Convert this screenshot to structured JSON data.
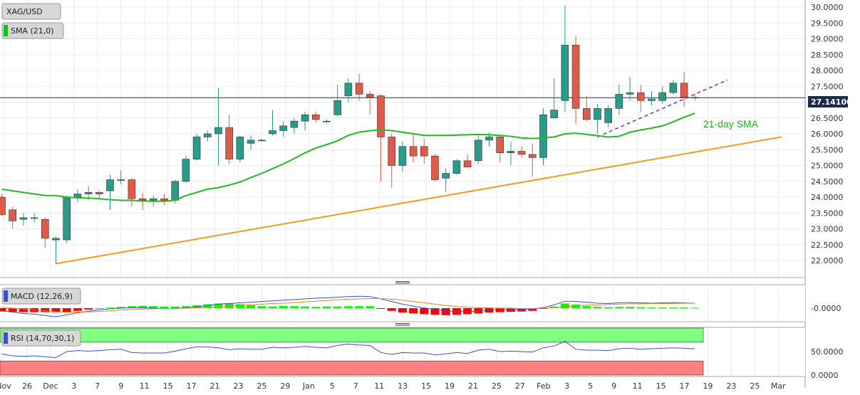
{
  "chart_data": [
    {
      "type": "candlestick",
      "panel": "price",
      "symbol": "XAG/USD",
      "indicator_label": "SMA (21,0)",
      "annotation": "21-day SMA",
      "last_price": "27.14100",
      "ylim": [
        21.75,
        30.2
      ],
      "y_ticks": [
        "22.0000",
        "22.5000",
        "23.0000",
        "23.5000",
        "24.0000",
        "24.5000",
        "25.0000",
        "25.5000",
        "26.0000",
        "26.5000",
        "27.0000",
        "27.5000",
        "28.0000",
        "28.5000",
        "29.0000",
        "29.5000",
        "30.0000"
      ],
      "x_ticks": [
        "Nov",
        "26",
        "Dec",
        "3",
        "7",
        "9",
        "11",
        "15",
        "17",
        "21",
        "23",
        "25",
        "29",
        "Jan",
        "5",
        "7",
        "11",
        "13",
        "15",
        "19",
        "21",
        "25",
        "27",
        "Feb",
        "3",
        "5",
        "9",
        "11",
        "15",
        "17",
        "19",
        "23",
        "25",
        "Mar"
      ],
      "candles": [
        {
          "o": 24.0,
          "h": 24.1,
          "l": 23.4,
          "c": 23.45
        },
        {
          "o": 23.6,
          "h": 23.7,
          "l": 23.0,
          "c": 23.25
        },
        {
          "o": 23.3,
          "h": 23.5,
          "l": 23.1,
          "c": 23.35
        },
        {
          "o": 23.35,
          "h": 23.5,
          "l": 23.2,
          "c": 23.35
        },
        {
          "o": 23.3,
          "h": 23.35,
          "l": 22.4,
          "c": 22.7
        },
        {
          "o": 22.65,
          "h": 22.75,
          "l": 21.9,
          "c": 22.7
        },
        {
          "o": 22.65,
          "h": 24.05,
          "l": 22.55,
          "c": 24.0
        },
        {
          "o": 24.0,
          "h": 24.25,
          "l": 23.85,
          "c": 24.1
        },
        {
          "o": 24.1,
          "h": 24.35,
          "l": 23.9,
          "c": 24.15
        },
        {
          "o": 24.15,
          "h": 24.2,
          "l": 23.95,
          "c": 24.1
        },
        {
          "o": 24.2,
          "h": 24.7,
          "l": 23.6,
          "c": 24.55
        },
        {
          "o": 24.55,
          "h": 24.85,
          "l": 24.4,
          "c": 24.55
        },
        {
          "o": 24.55,
          "h": 24.6,
          "l": 23.7,
          "c": 23.95
        },
        {
          "o": 23.95,
          "h": 24.15,
          "l": 23.6,
          "c": 23.9
        },
        {
          "o": 23.9,
          "h": 24.05,
          "l": 23.7,
          "c": 23.95
        },
        {
          "o": 23.95,
          "h": 24.1,
          "l": 23.75,
          "c": 23.9
        },
        {
          "o": 23.9,
          "h": 24.55,
          "l": 23.8,
          "c": 24.5
        },
        {
          "o": 24.5,
          "h": 25.3,
          "l": 24.45,
          "c": 25.2
        },
        {
          "o": 25.2,
          "h": 26.0,
          "l": 25.15,
          "c": 25.9
        },
        {
          "o": 25.9,
          "h": 26.1,
          "l": 25.75,
          "c": 26.0
        },
        {
          "o": 26.0,
          "h": 27.45,
          "l": 25.0,
          "c": 26.2
        },
        {
          "o": 26.2,
          "h": 26.6,
          "l": 25.05,
          "c": 25.2
        },
        {
          "o": 25.2,
          "h": 25.95,
          "l": 25.1,
          "c": 25.9
        },
        {
          "o": 25.7,
          "h": 25.95,
          "l": 25.5,
          "c": 25.8
        },
        {
          "o": 25.8,
          "h": 25.85,
          "l": 25.75,
          "c": 25.8
        },
        {
          "o": 26.0,
          "h": 26.75,
          "l": 25.95,
          "c": 26.1
        },
        {
          "o": 26.1,
          "h": 26.4,
          "l": 25.9,
          "c": 26.25
        },
        {
          "o": 26.2,
          "h": 26.5,
          "l": 26.0,
          "c": 26.4
        },
        {
          "o": 26.4,
          "h": 26.7,
          "l": 26.1,
          "c": 26.6
        },
        {
          "o": 26.6,
          "h": 26.7,
          "l": 26.35,
          "c": 26.45
        },
        {
          "o": 26.4,
          "h": 26.45,
          "l": 26.35,
          "c": 26.4
        },
        {
          "o": 26.6,
          "h": 27.55,
          "l": 26.55,
          "c": 27.05
        },
        {
          "o": 27.2,
          "h": 27.75,
          "l": 27.0,
          "c": 27.6
        },
        {
          "o": 27.6,
          "h": 27.9,
          "l": 27.05,
          "c": 27.25
        },
        {
          "o": 27.25,
          "h": 27.35,
          "l": 26.6,
          "c": 27.15
        },
        {
          "o": 27.2,
          "h": 27.25,
          "l": 24.5,
          "c": 25.9
        },
        {
          "o": 25.9,
          "h": 26.0,
          "l": 24.3,
          "c": 25.0
        },
        {
          "o": 25.0,
          "h": 25.75,
          "l": 24.8,
          "c": 25.6
        },
        {
          "o": 25.6,
          "h": 26.0,
          "l": 25.1,
          "c": 25.3
        },
        {
          "o": 25.6,
          "h": 25.85,
          "l": 25.05,
          "c": 25.3
        },
        {
          "o": 25.3,
          "h": 25.35,
          "l": 24.5,
          "c": 24.55
        },
        {
          "o": 24.6,
          "h": 24.9,
          "l": 24.15,
          "c": 24.75
        },
        {
          "o": 24.75,
          "h": 25.2,
          "l": 24.7,
          "c": 25.15
        },
        {
          "o": 25.15,
          "h": 25.35,
          "l": 24.95,
          "c": 24.95
        },
        {
          "o": 25.15,
          "h": 25.95,
          "l": 25.05,
          "c": 25.8
        },
        {
          "o": 25.8,
          "h": 26.05,
          "l": 25.6,
          "c": 25.9
        },
        {
          "o": 25.9,
          "h": 25.95,
          "l": 25.1,
          "c": 25.4
        },
        {
          "o": 25.4,
          "h": 25.75,
          "l": 25.0,
          "c": 25.45
        },
        {
          "o": 25.45,
          "h": 25.6,
          "l": 25.25,
          "c": 25.35
        },
        {
          "o": 25.35,
          "h": 25.7,
          "l": 24.65,
          "c": 25.25
        },
        {
          "o": 25.25,
          "h": 26.8,
          "l": 25.0,
          "c": 26.6
        },
        {
          "o": 26.5,
          "h": 27.75,
          "l": 26.55,
          "c": 26.75
        },
        {
          "o": 27.05,
          "h": 30.05,
          "l": 26.7,
          "c": 28.8
        },
        {
          "o": 28.8,
          "h": 29.1,
          "l": 26.3,
          "c": 26.8
        },
        {
          "o": 26.8,
          "h": 27.2,
          "l": 26.4,
          "c": 26.45
        },
        {
          "o": 26.45,
          "h": 26.95,
          "l": 26.0,
          "c": 26.8
        },
        {
          "o": 26.35,
          "h": 26.9,
          "l": 26.2,
          "c": 26.8
        },
        {
          "o": 26.8,
          "h": 27.55,
          "l": 26.6,
          "c": 27.25
        },
        {
          "o": 27.25,
          "h": 27.8,
          "l": 27.05,
          "c": 27.3
        },
        {
          "o": 27.3,
          "h": 27.55,
          "l": 26.7,
          "c": 27.05
        },
        {
          "o": 27.05,
          "h": 27.35,
          "l": 26.9,
          "c": 27.1
        },
        {
          "o": 27.05,
          "h": 27.5,
          "l": 26.95,
          "c": 27.3
        },
        {
          "o": 27.3,
          "h": 27.7,
          "l": 27.25,
          "c": 27.6
        },
        {
          "o": 27.6,
          "h": 27.95,
          "l": 26.85,
          "c": 27.15
        },
        {
          "o": 27.15,
          "h": 27.25,
          "l": 27.05,
          "c": 27.14
        }
      ],
      "sma21": [
        24.25,
        24.2,
        24.15,
        24.1,
        24.05,
        24.05,
        24.0,
        23.98,
        23.97,
        23.95,
        23.92,
        23.9,
        23.9,
        23.88,
        23.87,
        23.87,
        23.9,
        24.05,
        24.15,
        24.25,
        24.3,
        24.38,
        24.48,
        24.62,
        24.75,
        24.9,
        25.05,
        25.22,
        25.4,
        25.55,
        25.66,
        25.78,
        25.95,
        26.05,
        26.1,
        26.12,
        26.1,
        26.05,
        26.0,
        25.95,
        25.95,
        25.95,
        25.96,
        25.97,
        25.98,
        25.97,
        25.95,
        25.92,
        25.87,
        25.85,
        25.87,
        25.9,
        26.0,
        26.02,
        25.98,
        25.94,
        25.9,
        25.92,
        26.05,
        26.12,
        26.18,
        26.25,
        26.38,
        26.52,
        26.65
      ],
      "trendline_support": {
        "from": {
          "candle": 5,
          "y": 21.9
        },
        "to": {
          "candle": 72,
          "y": 25.9
        }
      },
      "trendline_resistance": {
        "from": {
          "candle": 55,
          "y": 25.9
        },
        "to": {
          "candle": 67,
          "y": 27.7
        }
      }
    },
    {
      "type": "histogram+line",
      "panel": "macd",
      "label": "MACD (12,26,9)",
      "ylim": [
        -0.3,
        0.67
      ],
      "y_ticks": [
        "-0.0000"
      ],
      "histogram": [
        -0.1,
        -0.11,
        -0.12,
        -0.12,
        -0.12,
        -0.12,
        -0.12,
        -0.08,
        -0.04,
        0.0,
        0.02,
        0.04,
        0.06,
        0.07,
        0.06,
        0.05,
        0.05,
        0.06,
        0.09,
        0.12,
        0.14,
        0.15,
        0.12,
        0.09,
        0.06,
        0.05,
        0.07,
        0.06,
        0.05,
        0.04,
        0.05,
        0.05,
        0.06,
        0.06,
        0.06,
        -0.02,
        -0.08,
        -0.13,
        -0.16,
        -0.18,
        -0.2,
        -0.21,
        -0.2,
        -0.18,
        -0.16,
        -0.13,
        -0.12,
        -0.11,
        -0.1,
        -0.08,
        -0.02,
        0.05,
        0.14,
        0.11,
        0.06,
        0.04,
        0.03,
        0.04,
        0.04,
        0.03,
        0.02,
        0.02,
        0.02,
        0.02,
        0.01
      ],
      "macd_line": [
        -0.08,
        -0.12,
        -0.16,
        -0.18,
        -0.22,
        -0.26,
        -0.2,
        -0.14,
        -0.09,
        -0.05,
        -0.02,
        0.0,
        0.01,
        0.01,
        0.0,
        -0.01,
        -0.01,
        0.01,
        0.04,
        0.08,
        0.12,
        0.14,
        0.16,
        0.18,
        0.2,
        0.22,
        0.24,
        0.26,
        0.28,
        0.3,
        0.31,
        0.33,
        0.35,
        0.36,
        0.35,
        0.28,
        0.2,
        0.12,
        0.06,
        0.01,
        -0.04,
        -0.08,
        -0.1,
        -0.1,
        -0.09,
        -0.07,
        -0.05,
        -0.04,
        -0.03,
        -0.02,
        0.02,
        0.1,
        0.21,
        0.2,
        0.18,
        0.15,
        0.14,
        0.16,
        0.17,
        0.16,
        0.15,
        0.16,
        0.17,
        0.16,
        0.15
      ],
      "signal_line": [
        0.02,
        0.0,
        -0.02,
        -0.05,
        -0.08,
        -0.11,
        -0.12,
        -0.12,
        -0.11,
        -0.1,
        -0.08,
        -0.06,
        -0.04,
        -0.03,
        -0.02,
        -0.01,
        -0.01,
        0.0,
        0.01,
        0.02,
        0.04,
        0.06,
        0.08,
        0.1,
        0.12,
        0.14,
        0.15,
        0.17,
        0.19,
        0.21,
        0.23,
        0.25,
        0.27,
        0.28,
        0.29,
        0.29,
        0.27,
        0.24,
        0.2,
        0.16,
        0.12,
        0.08,
        0.05,
        0.03,
        0.02,
        0.01,
        0.0,
        0.0,
        -0.01,
        -0.01,
        0.0,
        0.01,
        0.04,
        0.07,
        0.09,
        0.1,
        0.11,
        0.12,
        0.13,
        0.13,
        0.14,
        0.14,
        0.14,
        0.15,
        0.15
      ],
      "colors": {
        "positive": "#00ff00",
        "negative": "#ff0000",
        "macd": "#3850d8",
        "signal": "#f08020"
      }
    },
    {
      "type": "line",
      "panel": "rsi",
      "label": "RSI (14,70,30,1)",
      "ylim": [
        0,
        100
      ],
      "y_ticks": [
        "50.0000",
        "0.0000"
      ],
      "overbought": 70,
      "oversold": 30,
      "values": [
        45,
        41,
        40,
        41,
        39,
        37,
        50,
        52,
        51,
        52,
        54,
        55,
        48,
        47,
        47,
        47,
        51,
        56,
        60,
        60,
        58,
        54,
        56,
        55,
        55,
        59,
        58,
        59,
        61,
        59,
        58,
        63,
        66,
        64,
        63,
        48,
        44,
        48,
        47,
        47,
        43,
        45,
        48,
        46,
        53,
        55,
        50,
        51,
        50,
        49,
        58,
        62,
        72,
        55,
        53,
        53,
        52,
        56,
        57,
        55,
        56,
        57,
        58,
        57,
        56
      ],
      "colors": {
        "line": "#3850d8",
        "overbought_zone": "#80ff80",
        "oversold_zone": "#ff8080"
      }
    }
  ]
}
